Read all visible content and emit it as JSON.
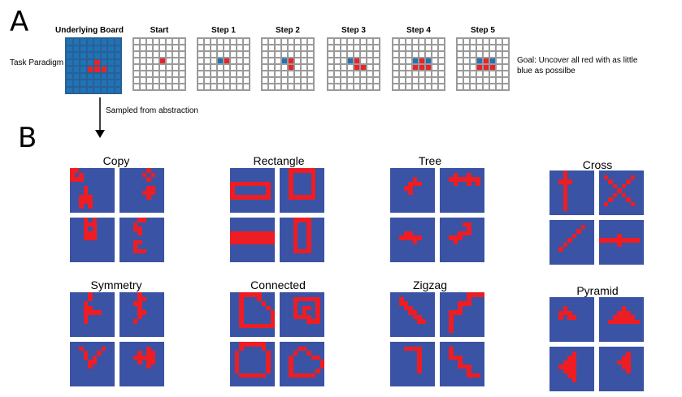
{
  "panel_a": {
    "letter": "A",
    "task_paradigm_label": "Task Paradigm",
    "underlying_board_label": "Underlying Board",
    "step_labels": [
      "Start",
      "Step 1",
      "Step 2",
      "Step 3",
      "Step 4",
      "Step 5"
    ],
    "goal_text": "Goal: Uncover all red with as little blue as possilbe",
    "sampled_label": "Sampled from abstraction"
  },
  "panel_b": {
    "letter": "B",
    "categories": [
      "Copy",
      "Rectangle",
      "Tree",
      "Cross",
      "Symmetry",
      "Connected",
      "Zigzag",
      "Pyramid"
    ]
  },
  "colors": {
    "board_blue": "#1f73b7",
    "board_red": "#e8242a",
    "example_blue": "#3a53a4",
    "example_red": "#ee1d23",
    "grid_line": "#9a9a9a"
  }
}
